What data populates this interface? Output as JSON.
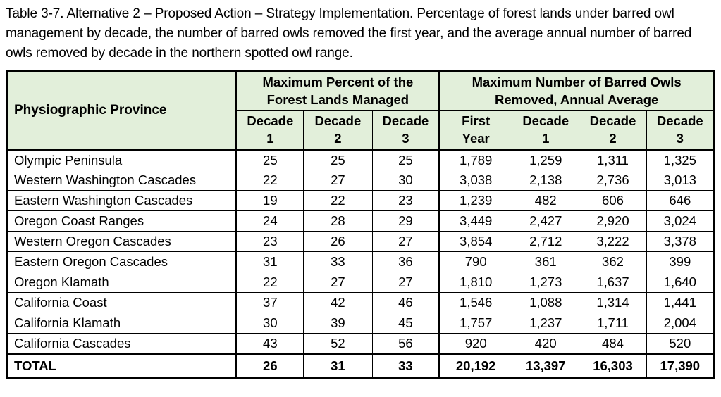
{
  "caption": "Table 3-7. Alternative 2 – Proposed Action – Strategy Implementation. Percentage of forest lands under barred owl management by decade, the number of barred owls removed the first year, and the average annual number of barred owls removed by decade in the northern spotted owl range.",
  "colors": {
    "header_bg": "#e2efda",
    "border": "#000000",
    "body_bg": "#ffffff"
  },
  "table": {
    "province_header": "Physiographic Province",
    "group_headers": [
      "Maximum Percent of the\nForest Lands Managed",
      "Maximum Number of Barred Owls\nRemoved, Annual Average"
    ],
    "sub_headers": [
      "Decade\n1",
      "Decade\n2",
      "Decade\n3",
      "First\nYear",
      "Decade\n1",
      "Decade\n2",
      "Decade\n3"
    ],
    "rows": [
      {
        "province": "Olympic Peninsula",
        "values": [
          "25",
          "25",
          "25",
          "1,789",
          "1,259",
          "1,311",
          "1,325"
        ]
      },
      {
        "province": "Western Washington Cascades",
        "values": [
          "22",
          "27",
          "30",
          "3,038",
          "2,138",
          "2,736",
          "3,013"
        ]
      },
      {
        "province": "Eastern Washington Cascades",
        "values": [
          "19",
          "22",
          "23",
          "1,239",
          "482",
          "606",
          "646"
        ]
      },
      {
        "province": "Oregon Coast Ranges",
        "values": [
          "24",
          "28",
          "29",
          "3,449",
          "2,427",
          "2,920",
          "3,024"
        ]
      },
      {
        "province": "Western Oregon Cascades",
        "values": [
          "23",
          "26",
          "27",
          "3,854",
          "2,712",
          "3,222",
          "3,378"
        ]
      },
      {
        "province": "Eastern Oregon Cascades",
        "values": [
          "31",
          "33",
          "36",
          "790",
          "361",
          "362",
          "399"
        ]
      },
      {
        "province": "Oregon Klamath",
        "values": [
          "22",
          "27",
          "27",
          "1,810",
          "1,273",
          "1,637",
          "1,640"
        ]
      },
      {
        "province": "California Coast",
        "values": [
          "37",
          "42",
          "46",
          "1,546",
          "1,088",
          "1,314",
          "1,441"
        ]
      },
      {
        "province": "California Klamath",
        "values": [
          "30",
          "39",
          "45",
          "1,757",
          "1,237",
          "1,711",
          "2,004"
        ]
      },
      {
        "province": "California Cascades",
        "values": [
          "43",
          "52",
          "56",
          "920",
          "420",
          "484",
          "520"
        ]
      }
    ],
    "total": {
      "label": "TOTAL",
      "values": [
        "26",
        "31",
        "33",
        "20,192",
        "13,397",
        "16,303",
        "17,390"
      ]
    }
  },
  "chart_data": {
    "type": "table",
    "title": "Table 3-7. Alternative 2 – Proposed Action – Strategy Implementation",
    "columns": [
      "Physiographic Province",
      "Maximum Percent of the Forest Lands Managed - Decade 1",
      "Maximum Percent of the Forest Lands Managed - Decade 2",
      "Maximum Percent of the Forest Lands Managed - Decade 3",
      "Maximum Number of Barred Owls Removed, Annual Average - First Year",
      "Maximum Number of Barred Owls Removed, Annual Average - Decade 1",
      "Maximum Number of Barred Owls Removed, Annual Average - Decade 2",
      "Maximum Number of Barred Owls Removed, Annual Average - Decade 3"
    ],
    "rows": [
      [
        "Olympic Peninsula",
        25,
        25,
        25,
        1789,
        1259,
        1311,
        1325
      ],
      [
        "Western Washington Cascades",
        22,
        27,
        30,
        3038,
        2138,
        2736,
        3013
      ],
      [
        "Eastern Washington Cascades",
        19,
        22,
        23,
        1239,
        482,
        606,
        646
      ],
      [
        "Oregon Coast Ranges",
        24,
        28,
        29,
        3449,
        2427,
        2920,
        3024
      ],
      [
        "Western Oregon Cascades",
        23,
        26,
        27,
        3854,
        2712,
        3222,
        3378
      ],
      [
        "Eastern Oregon Cascades",
        31,
        33,
        36,
        790,
        361,
        362,
        399
      ],
      [
        "Oregon Klamath",
        22,
        27,
        27,
        1810,
        1273,
        1637,
        1640
      ],
      [
        "California Coast",
        37,
        42,
        46,
        1546,
        1088,
        1314,
        1441
      ],
      [
        "California Klamath",
        30,
        39,
        45,
        1757,
        1237,
        1711,
        2004
      ],
      [
        "California Cascades",
        43,
        52,
        56,
        920,
        420,
        484,
        520
      ],
      [
        "TOTAL",
        26,
        31,
        33,
        20192,
        13397,
        16303,
        17390
      ]
    ]
  }
}
